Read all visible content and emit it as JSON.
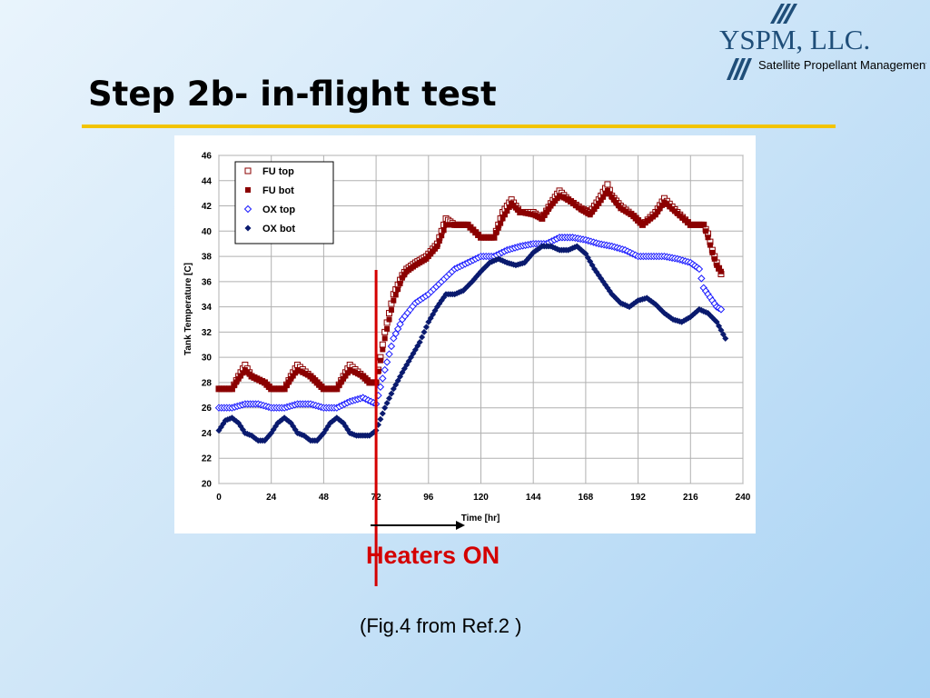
{
  "slide": {
    "title": "Step 2b- in-flight test",
    "annotation": "Heaters ON",
    "caption": "(Fig.4 from Ref.2 )",
    "colors": {
      "title_rule": "#f2c400",
      "annotation": "#d40000",
      "logo": "#1f4e79"
    }
  },
  "logo": {
    "name": "YSPM, LLC.",
    "tagline": "Satellite Propellant Management"
  },
  "chart_data": {
    "type": "scatter",
    "title": "",
    "xlabel": "Time [hr]",
    "ylabel": "Tank Temperature [C]",
    "xlim": [
      0,
      240
    ],
    "ylim": [
      20,
      46
    ],
    "xticks": [
      0,
      24,
      48,
      72,
      96,
      120,
      144,
      168,
      192,
      216,
      240
    ],
    "yticks": [
      20,
      22,
      24,
      26,
      28,
      30,
      32,
      34,
      36,
      38,
      40,
      42,
      44,
      46
    ],
    "grid": true,
    "legend_position": "top-left",
    "annotation_x": 72,
    "series": [
      {
        "name": "FU top",
        "color": "#8b0000",
        "marker": "open-square",
        "x": [
          0,
          6,
          9,
          12,
          15,
          21,
          24,
          30,
          33,
          36,
          42,
          45,
          48,
          54,
          57,
          60,
          66,
          69,
          72,
          76,
          80,
          84,
          86,
          90,
          95,
          100,
          104,
          108,
          110,
          114,
          120,
          126,
          130,
          134,
          138,
          144,
          148,
          152,
          156,
          160,
          166,
          170,
          174,
          178,
          180,
          184,
          190,
          194,
          200,
          204,
          210,
          216,
          220,
          222,
          224,
          226,
          228,
          230
        ],
        "y": [
          27.5,
          27.5,
          28.5,
          29.4,
          28.5,
          28,
          27.5,
          27.5,
          28.5,
          29.4,
          28.5,
          28,
          27.5,
          27.5,
          28.5,
          29.4,
          28.5,
          28,
          28,
          32,
          35,
          36.5,
          37,
          37.5,
          38,
          39,
          41,
          40.5,
          40.5,
          40.5,
          39.5,
          39.5,
          41.5,
          42.5,
          41.5,
          41.5,
          41,
          42.2,
          43.2,
          42.5,
          41.8,
          41.5,
          42.5,
          43.7,
          42.8,
          42,
          41.2,
          40.5,
          41.5,
          42.6,
          41.5,
          40.5,
          40.5,
          40.5,
          39.8,
          38.5,
          37.5,
          36.6
        ]
      },
      {
        "name": "FU bot",
        "color": "#8b0000",
        "marker": "filled-square",
        "x": [
          0,
          6,
          9,
          12,
          15,
          21,
          24,
          30,
          33,
          36,
          42,
          45,
          48,
          54,
          57,
          60,
          66,
          69,
          72,
          76,
          80,
          84,
          86,
          90,
          95,
          100,
          104,
          108,
          110,
          114,
          120,
          126,
          130,
          134,
          138,
          144,
          148,
          152,
          156,
          160,
          166,
          170,
          174,
          178,
          180,
          184,
          190,
          194,
          200,
          204,
          210,
          216,
          220,
          222,
          224,
          226,
          228,
          230
        ],
        "y": [
          27.5,
          27.5,
          28.3,
          29,
          28.5,
          28,
          27.5,
          27.5,
          28.3,
          29,
          28.5,
          28,
          27.5,
          27.5,
          28.3,
          29,
          28.5,
          28,
          28,
          31.5,
          34.5,
          36.3,
          36.8,
          37.3,
          37.8,
          38.8,
          40.5,
          40.5,
          40.5,
          40.5,
          39.5,
          39.5,
          41,
          42.2,
          41.5,
          41.3,
          41,
          42,
          42.8,
          42.5,
          41.7,
          41.3,
          42.2,
          43.2,
          42.7,
          41.8,
          41.2,
          40.5,
          41.3,
          42.3,
          41.4,
          40.5,
          40.5,
          40.5,
          39.5,
          38.3,
          37.3,
          36.8
        ]
      },
      {
        "name": "OX top",
        "color": "#1a1aff",
        "marker": "open-diamond",
        "x": [
          0,
          6,
          12,
          18,
          24,
          30,
          36,
          42,
          48,
          54,
          60,
          66,
          72,
          76,
          80,
          84,
          90,
          96,
          102,
          108,
          114,
          120,
          126,
          132,
          138,
          144,
          150,
          156,
          162,
          168,
          174,
          180,
          186,
          192,
          198,
          204,
          210,
          216,
          220,
          222,
          224,
          226,
          228,
          230
        ],
        "y": [
          26,
          26,
          26.3,
          26.3,
          26,
          26,
          26.3,
          26.3,
          26,
          26,
          26.5,
          26.8,
          26.3,
          29,
          31.5,
          33,
          34.3,
          35,
          36,
          37,
          37.5,
          38,
          38,
          38.5,
          38.8,
          39,
          39,
          39.5,
          39.5,
          39.3,
          39,
          38.8,
          38.5,
          38,
          38,
          38,
          37.8,
          37.5,
          37,
          35.5,
          35,
          34.5,
          34,
          33.8
        ]
      },
      {
        "name": "OX bot",
        "color": "#0a1a6e",
        "marker": "filled-diamond",
        "x": [
          0,
          3,
          6,
          9,
          12,
          15,
          18,
          21,
          24,
          27,
          30,
          33,
          36,
          39,
          42,
          45,
          48,
          51,
          54,
          57,
          60,
          63,
          66,
          69,
          72,
          76,
          80,
          84,
          88,
          92,
          96,
          100,
          104,
          108,
          112,
          116,
          120,
          124,
          128,
          132,
          136,
          140,
          144,
          148,
          152,
          156,
          160,
          164,
          168,
          172,
          176,
          180,
          184,
          188,
          192,
          196,
          200,
          204,
          208,
          212,
          216,
          220,
          224,
          228,
          232
        ],
        "y": [
          24.2,
          25,
          25.2,
          24.8,
          24,
          23.8,
          23.4,
          23.4,
          24,
          24.8,
          25.2,
          24.8,
          24,
          23.8,
          23.4,
          23.4,
          24,
          24.8,
          25.2,
          24.8,
          24,
          23.8,
          23.8,
          23.8,
          24.2,
          26,
          27.5,
          28.8,
          30,
          31.2,
          32.8,
          34,
          35,
          35,
          35.3,
          36,
          36.8,
          37.5,
          37.8,
          37.5,
          37.3,
          37.5,
          38.3,
          38.8,
          38.8,
          38.5,
          38.5,
          38.8,
          38.2,
          37,
          36,
          35,
          34.3,
          34,
          34.5,
          34.7,
          34.2,
          33.5,
          33,
          32.8,
          33.2,
          33.8,
          33.5,
          32.8,
          31.5
        ]
      }
    ]
  }
}
